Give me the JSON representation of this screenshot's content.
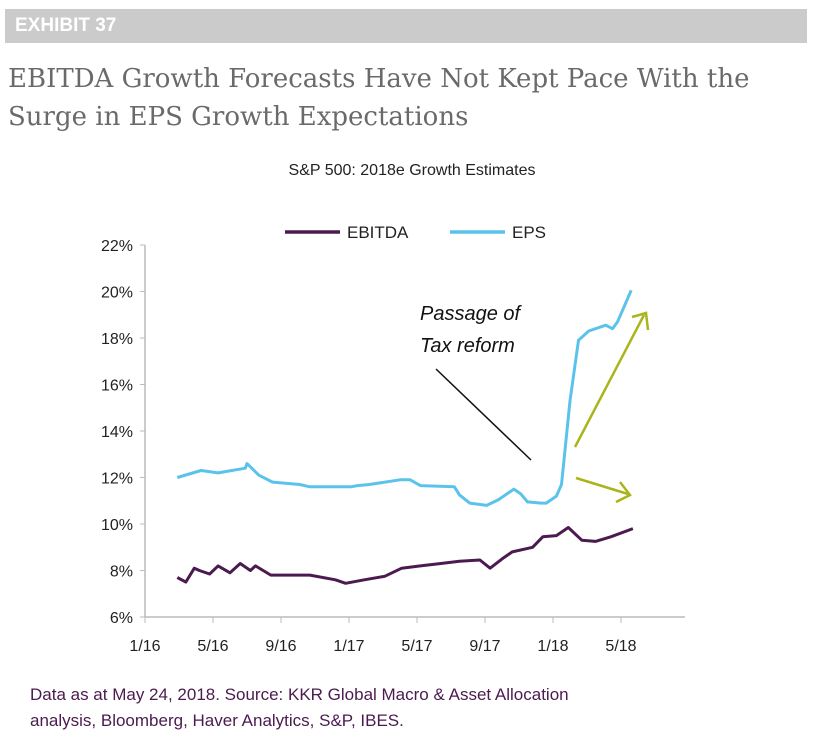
{
  "header": {
    "exhibit": "EXHIBIT 37",
    "title": "EBITDA Growth Forecasts Have Not Kept Pace With the Surge in EPS Growth Expectations"
  },
  "footer": {
    "line1": "Data as at May 24, 2018. Source: KKR Global Macro & Asset Allocation",
    "line2": "analysis, Bloomberg, Haver Analytics, S&P, IBES."
  },
  "chart_data": {
    "type": "line",
    "title": "S&P 500: 2018e Growth Estimates",
    "x_units": "months since Jan 2016",
    "xlim": [
      0,
      30
    ],
    "ylim": [
      6,
      22
    ],
    "yticks": [
      6,
      8,
      10,
      12,
      14,
      16,
      18,
      20,
      22
    ],
    "ytick_labels": [
      "6%",
      "8%",
      "10%",
      "12%",
      "14%",
      "16%",
      "18%",
      "20%",
      "22%"
    ],
    "xticks": [
      0,
      4,
      8,
      12,
      16,
      20,
      24,
      28
    ],
    "xtick_labels": [
      "1/16",
      "5/16",
      "9/16",
      "1/17",
      "5/17",
      "9/17",
      "1/18",
      "5/18"
    ],
    "legend_position": "top-center",
    "annotation": {
      "line1": "Passage of",
      "line2": "Tax reform"
    },
    "colors": {
      "EBITDA": "#4b1a4f",
      "EPS": "#5bc3eb",
      "arrow": "#a9b51a"
    },
    "series": [
      {
        "name": "EBITDA",
        "x": [
          1.9,
          2.4,
          2.9,
          3.2,
          3.8,
          4.3,
          5.0,
          5.6,
          6.2,
          6.5,
          7.4,
          8.5,
          9.7,
          11.2,
          11.8,
          12.9,
          14.1,
          15.1,
          16.2,
          17.4,
          18.5,
          19.7,
          20.3,
          21.1,
          21.6,
          22.8,
          23.4,
          24.2,
          24.9,
          25.7,
          26.5,
          27.4,
          28.7
        ],
        "y": [
          7.7,
          7.5,
          8.1,
          8.0,
          7.85,
          8.2,
          7.9,
          8.3,
          8.0,
          8.2,
          7.8,
          7.8,
          7.8,
          7.6,
          7.45,
          7.6,
          7.75,
          8.1,
          8.2,
          8.3,
          8.4,
          8.45,
          8.1,
          8.55,
          8.8,
          9.0,
          9.45,
          9.5,
          9.85,
          9.3,
          9.25,
          9.45,
          9.8
        ]
      },
      {
        "name": "EPS",
        "x": [
          1.9,
          3.3,
          4.3,
          5.9,
          6.0,
          6.7,
          7.5,
          9.1,
          9.7,
          12.1,
          12.5,
          13.2,
          15.0,
          15.6,
          16.2,
          18.2,
          18.5,
          19.1,
          20.1,
          20.8,
          21.7,
          22.1,
          22.5,
          23.3,
          23.6,
          24.2,
          24.5,
          25.0,
          25.5,
          26.1,
          27.1,
          27.5,
          27.8,
          28.6
        ],
        "y": [
          12.0,
          12.3,
          12.2,
          12.4,
          12.6,
          12.1,
          11.8,
          11.7,
          11.6,
          11.6,
          11.65,
          11.7,
          11.9,
          11.9,
          11.65,
          11.6,
          11.25,
          10.9,
          10.8,
          11.05,
          11.5,
          11.3,
          10.95,
          10.9,
          10.9,
          11.2,
          11.7,
          15.3,
          17.9,
          18.3,
          18.55,
          18.4,
          18.7,
          20.05
        ]
      }
    ]
  }
}
